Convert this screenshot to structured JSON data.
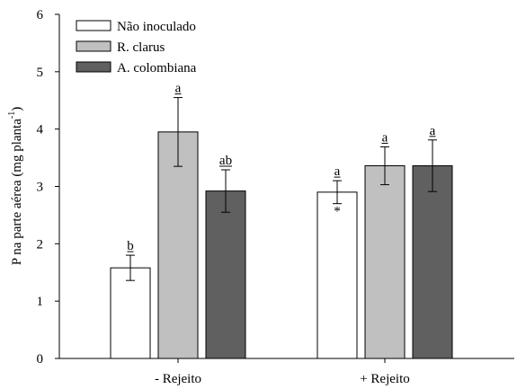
{
  "chart_data": {
    "type": "bar",
    "title": "",
    "xlabel": "",
    "ylabel": {
      "prefix": "P na parte aérea (mg planta",
      "superscript": "-1",
      "suffix": ")"
    },
    "ylim": [
      0,
      6
    ],
    "yticks": [
      "0",
      "1",
      "2",
      "3",
      "4",
      "5",
      "6"
    ],
    "categories": [
      "- Rejeito",
      "+ Rejeito"
    ],
    "grid": false,
    "legend_position": "top-left",
    "series": [
      {
        "name": "Não inoculado",
        "color": "#ffffff",
        "values": [
          1.58,
          2.9
        ],
        "errors": [
          0.22,
          0.2
        ],
        "labels": [
          "b",
          "a"
        ],
        "marks": [
          "",
          "*"
        ]
      },
      {
        "name": "R. clarus",
        "color": "#c0c0c0",
        "values": [
          3.95,
          3.36
        ],
        "errors": [
          0.6,
          0.33
        ],
        "labels": [
          "a",
          "a"
        ],
        "marks": [
          "",
          ""
        ]
      },
      {
        "name": "A. colombiana",
        "color": "#606060",
        "values": [
          2.92,
          3.36
        ],
        "errors": [
          0.37,
          0.45
        ],
        "labels": [
          "ab",
          "a"
        ],
        "marks": [
          "",
          ""
        ]
      }
    ]
  }
}
